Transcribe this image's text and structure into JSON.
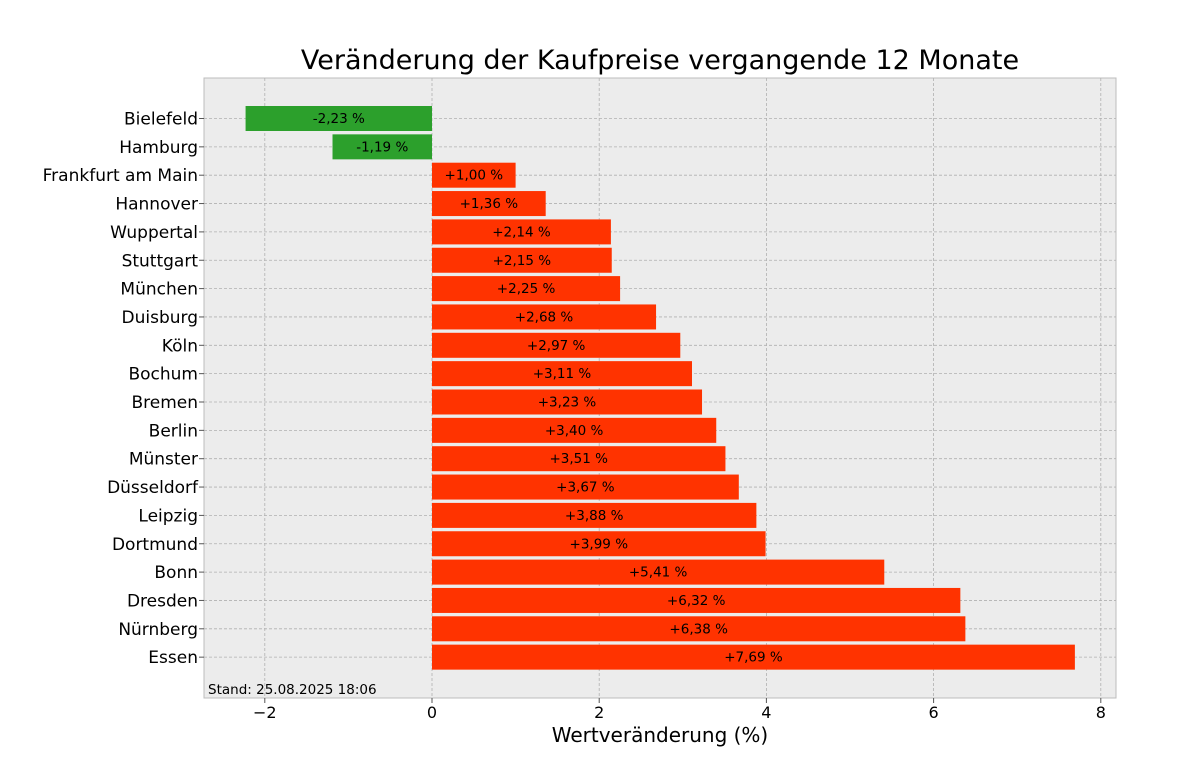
{
  "chart_data": {
    "type": "bar",
    "orientation": "horizontal",
    "title": "Veränderung der Kaufpreise vergangende 12 Monate",
    "xlabel": "Wertveränderung (%)",
    "ylabel": "",
    "xlim": [
      -2.75,
      8.2
    ],
    "xticks": [
      -2,
      0,
      2,
      4,
      6,
      8
    ],
    "xtick_labels": [
      "−2",
      "0",
      "2",
      "4",
      "6",
      "8"
    ],
    "grid": true,
    "annotation": "Stand: 25.08.2025 18:06",
    "colors": {
      "negative": "#2ca02c",
      "positive": "#ff3300",
      "background": "#ececec"
    },
    "categories": [
      "Bielefeld",
      "Hamburg",
      "Frankfurt am Main",
      "Hannover",
      "Wuppertal",
      "Stuttgart",
      "München",
      "Duisburg",
      "Köln",
      "Bochum",
      "Bremen",
      "Berlin",
      "Münster",
      "Düsseldorf",
      "Leipzig",
      "Dortmund",
      "Bonn",
      "Dresden",
      "Nürnberg",
      "Essen"
    ],
    "values": [
      -2.23,
      -1.19,
      1.0,
      1.36,
      2.14,
      2.15,
      2.25,
      2.68,
      2.97,
      3.11,
      3.23,
      3.4,
      3.51,
      3.67,
      3.88,
      3.99,
      5.41,
      6.32,
      6.38,
      7.69
    ],
    "value_labels": [
      "-2,23 %",
      "-1,19 %",
      "+1,00 %",
      "+1,36 %",
      "+2,14 %",
      "+2,15 %",
      "+2,25 %",
      "+2,68 %",
      "+2,97 %",
      "+3,11 %",
      "+3,23 %",
      "+3,40 %",
      "+3,51 %",
      "+3,67 %",
      "+3,88 %",
      "+3,99 %",
      "+5,41 %",
      "+6,32 %",
      "+6,38 %",
      "+7,69 %"
    ]
  }
}
